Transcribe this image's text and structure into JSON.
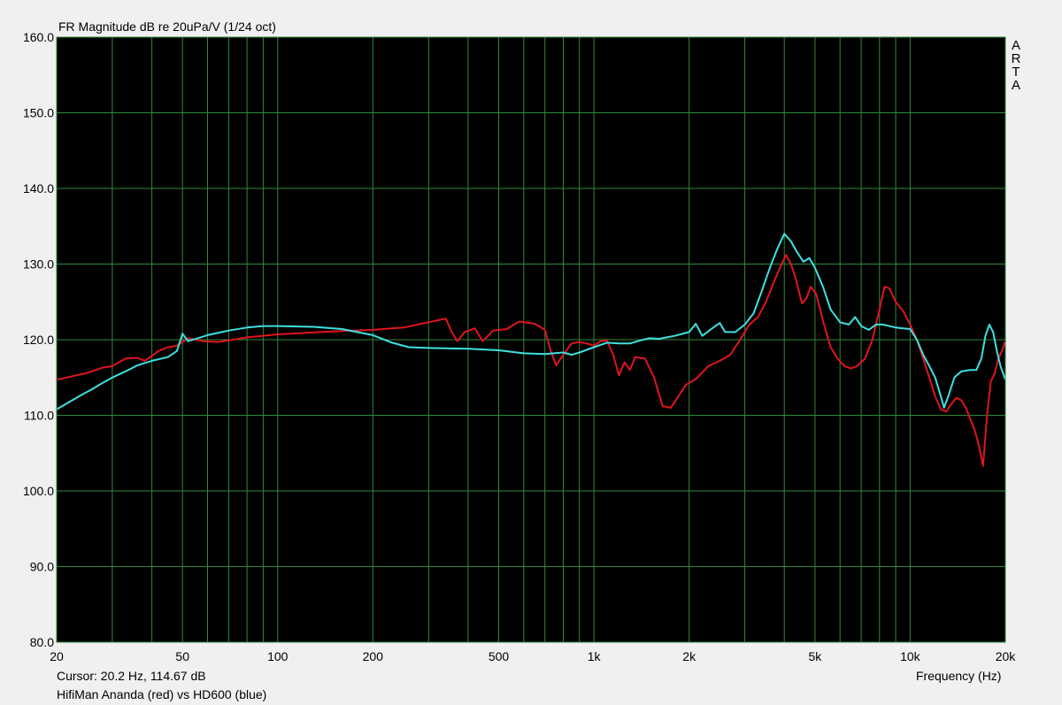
{
  "chart_data": {
    "type": "line",
    "title": "FR Magnitude dB re 20uPa/V (1/24 oct)",
    "xlabel": "Frequency (Hz)",
    "ylabel": "",
    "watermark": [
      "A",
      "R",
      "T",
      "A"
    ],
    "cursor_readout": "Cursor: 20.2 Hz, 114.67 dB",
    "legend_text": "HifiMan Ananda (red) vs HD600 (blue)",
    "x_scale": "log",
    "xlim": [
      20,
      20000
    ],
    "ylim": [
      80,
      160
    ],
    "grid": true,
    "x_tick_labels": [
      {
        "v": 20,
        "t": "20"
      },
      {
        "v": 50,
        "t": "50"
      },
      {
        "v": 100,
        "t": "100"
      },
      {
        "v": 200,
        "t": "200"
      },
      {
        "v": 500,
        "t": "500"
      },
      {
        "v": 1000,
        "t": "1k"
      },
      {
        "v": 2000,
        "t": "2k"
      },
      {
        "v": 5000,
        "t": "5k"
      },
      {
        "v": 10000,
        "t": "10k"
      },
      {
        "v": 20000,
        "t": "20k"
      }
    ],
    "y_tick_labels": [
      "80.0",
      "90.0",
      "100.0",
      "110.0",
      "120.0",
      "130.0",
      "140.0",
      "150.0",
      "160.0"
    ],
    "colors": {
      "plot_bg": "#000000",
      "grid": "#2e8a3c",
      "page_bg": "#f0f0f0"
    },
    "series": [
      {
        "name": "HifiMan Ananda (red)",
        "color": "#e0141e",
        "points": [
          [
            20,
            114.7
          ],
          [
            25,
            115.6
          ],
          [
            28,
            116.3
          ],
          [
            30,
            116.5
          ],
          [
            33,
            117.5
          ],
          [
            36,
            117.6
          ],
          [
            38,
            117.2
          ],
          [
            42,
            118.5
          ],
          [
            45,
            119.0
          ],
          [
            48,
            119.2
          ],
          [
            52,
            120.2
          ],
          [
            58,
            119.8
          ],
          [
            65,
            119.7
          ],
          [
            80,
            120.3
          ],
          [
            100,
            120.7
          ],
          [
            150,
            121.1
          ],
          [
            200,
            121.3
          ],
          [
            250,
            121.6
          ],
          [
            300,
            122.3
          ],
          [
            340,
            122.8
          ],
          [
            355,
            121.0
          ],
          [
            370,
            119.8
          ],
          [
            390,
            121.0
          ],
          [
            420,
            121.5
          ],
          [
            445,
            119.8
          ],
          [
            480,
            121.2
          ],
          [
            530,
            121.4
          ],
          [
            580,
            122.4
          ],
          [
            650,
            122.1
          ],
          [
            700,
            121.3
          ],
          [
            730,
            118.5
          ],
          [
            760,
            116.6
          ],
          [
            800,
            118.0
          ],
          [
            850,
            119.5
          ],
          [
            900,
            119.7
          ],
          [
            950,
            119.5
          ],
          [
            1000,
            119.2
          ],
          [
            1050,
            119.8
          ],
          [
            1100,
            119.9
          ],
          [
            1150,
            118.0
          ],
          [
            1200,
            115.3
          ],
          [
            1250,
            117.0
          ],
          [
            1300,
            116.0
          ],
          [
            1350,
            117.7
          ],
          [
            1450,
            117.5
          ],
          [
            1550,
            115.0
          ],
          [
            1650,
            111.2
          ],
          [
            1750,
            111.0
          ],
          [
            1850,
            112.5
          ],
          [
            1950,
            114.0
          ],
          [
            2100,
            114.8
          ],
          [
            2300,
            116.5
          ],
          [
            2500,
            117.2
          ],
          [
            2700,
            118.0
          ],
          [
            2900,
            120.0
          ],
          [
            3100,
            122.0
          ],
          [
            3300,
            123.0
          ],
          [
            3500,
            125.0
          ],
          [
            3700,
            127.5
          ],
          [
            3900,
            129.8
          ],
          [
            4050,
            131.2
          ],
          [
            4200,
            130.0
          ],
          [
            4350,
            128.0
          ],
          [
            4550,
            124.8
          ],
          [
            4700,
            125.5
          ],
          [
            4850,
            127.0
          ],
          [
            5050,
            126.0
          ],
          [
            5300,
            122.5
          ],
          [
            5600,
            119.0
          ],
          [
            5900,
            117.5
          ],
          [
            6200,
            116.5
          ],
          [
            6500,
            116.2
          ],
          [
            6800,
            116.5
          ],
          [
            7200,
            117.5
          ],
          [
            7600,
            120.0
          ],
          [
            8000,
            124.0
          ],
          [
            8300,
            127.0
          ],
          [
            8600,
            126.8
          ],
          [
            9000,
            125.0
          ],
          [
            9500,
            123.8
          ],
          [
            10000,
            122.0
          ],
          [
            10500,
            120.0
          ],
          [
            11000,
            117.5
          ],
          [
            11500,
            115.0
          ],
          [
            12000,
            112.5
          ],
          [
            12500,
            110.8
          ],
          [
            13000,
            110.5
          ],
          [
            13500,
            111.5
          ],
          [
            14000,
            112.3
          ],
          [
            14500,
            112.0
          ],
          [
            15000,
            111.0
          ],
          [
            15500,
            109.5
          ],
          [
            16000,
            108.0
          ],
          [
            16500,
            106.0
          ],
          [
            17000,
            103.3
          ],
          [
            17500,
            110.0
          ],
          [
            18000,
            114.5
          ],
          [
            18500,
            115.5
          ],
          [
            19000,
            117.5
          ],
          [
            19500,
            118.5
          ],
          [
            20000,
            119.8
          ]
        ]
      },
      {
        "name": "HD600 (blue)",
        "color": "#3fe0e0",
        "points": [
          [
            20,
            110.8
          ],
          [
            22,
            111.8
          ],
          [
            24,
            112.7
          ],
          [
            26,
            113.5
          ],
          [
            28,
            114.3
          ],
          [
            30,
            115.0
          ],
          [
            33,
            115.8
          ],
          [
            36,
            116.6
          ],
          [
            40,
            117.2
          ],
          [
            45,
            117.7
          ],
          [
            48,
            118.5
          ],
          [
            50,
            120.8
          ],
          [
            52,
            119.8
          ],
          [
            56,
            120.2
          ],
          [
            60,
            120.6
          ],
          [
            70,
            121.2
          ],
          [
            80,
            121.6
          ],
          [
            90,
            121.8
          ],
          [
            100,
            121.8
          ],
          [
            130,
            121.7
          ],
          [
            160,
            121.4
          ],
          [
            200,
            120.6
          ],
          [
            230,
            119.6
          ],
          [
            260,
            119.0
          ],
          [
            300,
            118.9
          ],
          [
            400,
            118.8
          ],
          [
            500,
            118.6
          ],
          [
            600,
            118.2
          ],
          [
            700,
            118.1
          ],
          [
            800,
            118.3
          ],
          [
            850,
            118.0
          ],
          [
            900,
            118.3
          ],
          [
            1000,
            119.0
          ],
          [
            1100,
            119.6
          ],
          [
            1200,
            119.5
          ],
          [
            1300,
            119.5
          ],
          [
            1400,
            119.9
          ],
          [
            1500,
            120.2
          ],
          [
            1600,
            120.1
          ],
          [
            1700,
            120.3
          ],
          [
            1800,
            120.5
          ],
          [
            2000,
            121.0
          ],
          [
            2100,
            122.1
          ],
          [
            2200,
            120.5
          ],
          [
            2400,
            121.7
          ],
          [
            2500,
            122.2
          ],
          [
            2600,
            121.0
          ],
          [
            2800,
            121.0
          ],
          [
            3000,
            122.0
          ],
          [
            3200,
            123.5
          ],
          [
            3400,
            126.5
          ],
          [
            3600,
            129.5
          ],
          [
            3800,
            132.0
          ],
          [
            4000,
            134.0
          ],
          [
            4200,
            133.0
          ],
          [
            4400,
            131.5
          ],
          [
            4600,
            130.3
          ],
          [
            4800,
            130.8
          ],
          [
            5000,
            129.5
          ],
          [
            5300,
            127.0
          ],
          [
            5600,
            124.0
          ],
          [
            6000,
            122.3
          ],
          [
            6400,
            122.0
          ],
          [
            6700,
            123.0
          ],
          [
            7000,
            121.8
          ],
          [
            7400,
            121.3
          ],
          [
            7800,
            122.0
          ],
          [
            8200,
            122.0
          ],
          [
            9000,
            121.6
          ],
          [
            10000,
            121.4
          ],
          [
            10500,
            120.0
          ],
          [
            11000,
            118.0
          ],
          [
            11500,
            116.5
          ],
          [
            12000,
            115.0
          ],
          [
            12500,
            112.5
          ],
          [
            12800,
            111.0
          ],
          [
            13200,
            112.5
          ],
          [
            13800,
            115.0
          ],
          [
            14500,
            115.8
          ],
          [
            15500,
            116.0
          ],
          [
            16200,
            116.0
          ],
          [
            16800,
            117.5
          ],
          [
            17300,
            120.5
          ],
          [
            17800,
            122.0
          ],
          [
            18300,
            121.0
          ],
          [
            18800,
            118.5
          ],
          [
            19300,
            116.5
          ],
          [
            20000,
            114.7
          ]
        ]
      }
    ]
  }
}
